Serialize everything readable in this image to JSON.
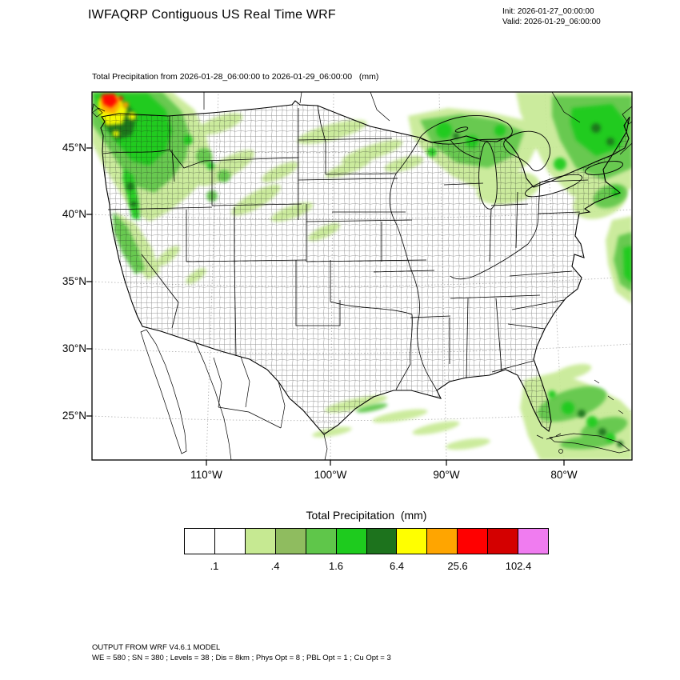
{
  "header": {
    "title": "IWFAQRP Contiguous US Real Time WRF",
    "init_label": "Init: 2026-01-27_00:00:00",
    "valid_label": "Valid: 2026-01-29_06:00:00"
  },
  "map": {
    "subtitle": "Total Precipitation from 2026-01-28_06:00:00 to 2026-01-29_06:00:00   (mm)",
    "lat_labels": [
      "45°N",
      "40°N",
      "35°N",
      "30°N",
      "25°N"
    ],
    "lon_labels": [
      "110°W",
      "100°W",
      "90°W",
      "80°W"
    ]
  },
  "colorbar": {
    "title": "Total Precipitation  (mm)",
    "tick_labels": [
      ".1",
      ".4",
      "1.6",
      "6.4",
      "25.6",
      "102.4"
    ],
    "colors": [
      "#ffffff",
      "#ffffff",
      "#c6e992",
      "#8fbc5f",
      "#5fc64a",
      "#1ecb1e",
      "#1d731d",
      "#ffff00",
      "#ffa500",
      "#ff0000",
      "#d40000",
      "#f07cf0"
    ]
  },
  "precip_colors": {
    "light_green": "#c6e992",
    "olive_green": "#8fbc5f",
    "medium_green": "#5fc64a",
    "bright_green": "#1ecb1e",
    "dark_green": "#1d731d",
    "yellow": "#ffff00",
    "orange": "#ffa500",
    "red": "#ff0000"
  },
  "footer": {
    "line1": "OUTPUT FROM WRF V4.6.1 MODEL",
    "line2": "WE = 580 ; SN = 380 ; Levels = 38 ; Dis = 8km ; Phys Opt = 8 ; PBL Opt = 1 ; Cu Opt = 3"
  }
}
